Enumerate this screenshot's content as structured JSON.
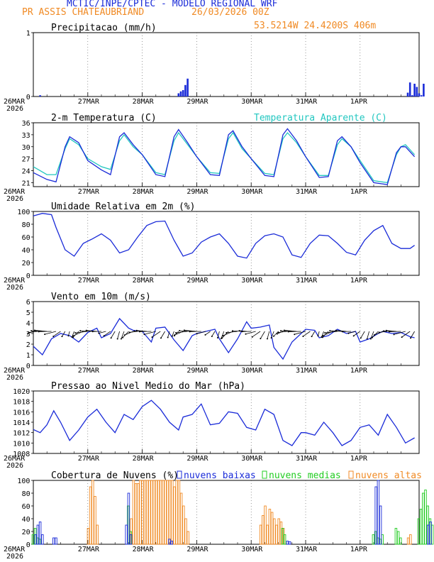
{
  "header": {
    "title": "MCTIC/INPE/CPTEC - MODELO REGIONAL WRF",
    "location": "PR ASSIS CHATEAUBRIAND",
    "datetime": "26/03/2026 00Z",
    "coords": "53.5214W 24.4200S 406m"
  },
  "colors": {
    "blue": "#1a2bd8",
    "orange": "#f08a24",
    "teal": "#22c7c0",
    "green": "#22cc22"
  },
  "chart_data": [
    {
      "type": "bar",
      "title": "Precipitacao (mm/h)",
      "x_tick_labels": [
        "26MAR",
        "27MAR",
        "28MAR",
        "29MAR",
        "30MAR",
        "31MAR",
        "1APR"
      ],
      "x_year": "2026",
      "ylim": [
        0,
        1
      ],
      "y_ticks": [
        0,
        1
      ],
      "hours": [
        3,
        64,
        65,
        66,
        67,
        68,
        165,
        166,
        167,
        168,
        169,
        170,
        171,
        172
      ],
      "values": [
        0.02,
        0.05,
        0.08,
        0.1,
        0.18,
        0.28,
        0.06,
        0.22,
        0.02,
        0.2,
        0.15,
        0.05,
        0.02,
        0.2
      ]
    },
    {
      "type": "line",
      "title": "2-m Temperatura (C)",
      "legend2": "Temperatura Aparente (C)",
      "ylim": [
        20,
        36
      ],
      "y_ticks": [
        21,
        24,
        27,
        30,
        33,
        36
      ],
      "hours": [
        0,
        6,
        10,
        14,
        16,
        20,
        24,
        30,
        34,
        38,
        40,
        44,
        48,
        54,
        58,
        62,
        64,
        68,
        72,
        78,
        82,
        86,
        88,
        92,
        96,
        102,
        106,
        110,
        112,
        116,
        120,
        126,
        130,
        134,
        136,
        140,
        144,
        150,
        156,
        160,
        162,
        164,
        168
      ],
      "temp": [
        23.5,
        21.8,
        21.2,
        30,
        32.5,
        31,
        26.5,
        24.2,
        23,
        32.5,
        33.5,
        30.5,
        28,
        23,
        22.5,
        32.5,
        34.3,
        31,
        27.5,
        23,
        22.8,
        33,
        34,
        30,
        27,
        22.8,
        22.5,
        33,
        34.5,
        31.5,
        27.5,
        22.3,
        22.5,
        31.5,
        32.5,
        30,
        26,
        21,
        20.5,
        28.5,
        30,
        30,
        27.5
      ],
      "apparent": [
        25,
        23,
        23,
        29.5,
        32,
        30.5,
        27,
        25,
        24.3,
        31.5,
        33,
        30,
        28,
        23.5,
        23,
        31.5,
        33.5,
        30.5,
        27.5,
        23.5,
        23.3,
        32,
        33.5,
        29.5,
        27,
        23.3,
        23,
        32,
        33.5,
        31,
        27.5,
        22.8,
        22.8,
        30.5,
        32,
        30,
        26.5,
        21.5,
        21,
        28,
        30,
        30.5,
        28
      ]
    },
    {
      "type": "line",
      "title": "Umidade Relativa em 2m (%)",
      "ylim": [
        0,
        100
      ],
      "y_ticks": [
        0,
        20,
        40,
        60,
        80,
        100
      ],
      "hours": [
        0,
        4,
        8,
        10,
        14,
        18,
        22,
        26,
        30,
        34,
        38,
        42,
        46,
        50,
        54,
        58,
        62,
        66,
        70,
        74,
        78,
        82,
        86,
        90,
        94,
        98,
        102,
        106,
        110,
        114,
        118,
        122,
        126,
        130,
        134,
        138,
        142,
        146,
        150,
        154,
        158,
        162,
        166,
        168
      ],
      "values": [
        93,
        97,
        95,
        75,
        40,
        30,
        50,
        57,
        65,
        55,
        35,
        40,
        60,
        78,
        84,
        85,
        55,
        30,
        35,
        52,
        60,
        65,
        50,
        30,
        27,
        50,
        62,
        65,
        60,
        32,
        28,
        50,
        63,
        62,
        50,
        36,
        32,
        55,
        70,
        78,
        50,
        42,
        42,
        47
      ]
    },
    {
      "type": "line",
      "title": "Vento em 10m (m/s)",
      "ylim": [
        0,
        6
      ],
      "y_ticks": [
        0,
        1,
        2,
        3,
        4,
        5,
        6
      ],
      "hours": [
        0,
        4,
        8,
        12,
        16,
        20,
        24,
        28,
        30,
        34,
        38,
        42,
        44,
        48,
        52,
        54,
        58,
        62,
        66,
        70,
        72,
        76,
        80,
        82,
        86,
        90,
        94,
        96,
        100,
        104,
        106,
        110,
        114,
        118,
        120,
        124,
        126,
        130,
        134,
        138,
        142,
        144,
        148,
        152,
        154,
        158,
        162,
        166,
        168
      ],
      "values": [
        1.8,
        1,
        2.5,
        3,
        2.8,
        2.2,
        3.1,
        3.5,
        2.6,
        3,
        4.4,
        3.5,
        3.3,
        3.2,
        2.2,
        3.5,
        3.6,
        2.4,
        1.4,
        2.8,
        3,
        3.2,
        3.4,
        2.5,
        1.2,
        2.5,
        4.1,
        3.5,
        3.6,
        3.8,
        1.7,
        0.6,
        2.2,
        3,
        3.4,
        3.3,
        2.6,
        2.8,
        3.4,
        3,
        3.2,
        2.2,
        2.5,
        3,
        3.2,
        3,
        3.1,
        2.7,
        2.6
      ]
    },
    {
      "type": "line",
      "title": "Pressao ao Nivel Medio do Mar (hPa)",
      "ylim": [
        1008,
        1020
      ],
      "y_ticks": [
        1008,
        1010,
        1012,
        1014,
        1016,
        1018,
        1020
      ],
      "hours": [
        0,
        3,
        6,
        9,
        12,
        16,
        20,
        24,
        28,
        32,
        36,
        40,
        44,
        48,
        52,
        56,
        60,
        64,
        66,
        70,
        74,
        78,
        82,
        86,
        90,
        94,
        98,
        102,
        106,
        110,
        114,
        118,
        120,
        124,
        128,
        132,
        136,
        140,
        144,
        148,
        152,
        156,
        160,
        164,
        168
      ],
      "values": [
        1012.6,
        1012,
        1013.5,
        1016.2,
        1014,
        1010.5,
        1012.5,
        1015,
        1016.5,
        1014,
        1012,
        1015.5,
        1014.5,
        1017,
        1018.2,
        1016.5,
        1014,
        1012.5,
        1015,
        1015.5,
        1017.5,
        1013.5,
        1013.8,
        1016,
        1015.7,
        1013,
        1012.5,
        1016.5,
        1015.5,
        1010.5,
        1009.5,
        1012,
        1012,
        1011.5,
        1014,
        1012,
        1009.5,
        1010.5,
        1013,
        1013.5,
        1011.5,
        1015.5,
        1013,
        1010,
        1011
      ]
    },
    {
      "type": "bar",
      "title": "Cobertura de Nuvens (%)",
      "legend": [
        "nuvens baixas",
        "nuvens medias",
        "nuvens altas"
      ],
      "ylim": [
        0,
        100
      ],
      "y_ticks": [
        0,
        20,
        40,
        60,
        80,
        100
      ],
      "low_hours": [
        1,
        2,
        3,
        4,
        9,
        10,
        41,
        42,
        43,
        60,
        61,
        112,
        113,
        151,
        152,
        153,
        174,
        175
      ],
      "low_values": [
        15,
        30,
        35,
        15,
        10,
        10,
        30,
        80,
        15,
        8,
        5,
        5,
        4,
        90,
        100,
        60,
        30,
        35
      ],
      "mid_hours": [
        0,
        1,
        2,
        3,
        42,
        43,
        110,
        111,
        150,
        151,
        152,
        153,
        154,
        160,
        161,
        162,
        170,
        171,
        172,
        173,
        174,
        175,
        176
      ],
      "mid_values": [
        15,
        25,
        10,
        8,
        60,
        20,
        25,
        15,
        15,
        20,
        10,
        8,
        15,
        25,
        20,
        10,
        40,
        55,
        80,
        85,
        60,
        40,
        30
      ],
      "high_hours": [
        24,
        25,
        26,
        27,
        28,
        43,
        44,
        45,
        46,
        47,
        48,
        49,
        50,
        51,
        52,
        53,
        54,
        55,
        56,
        57,
        58,
        59,
        60,
        61,
        62,
        63,
        64,
        65,
        66,
        67,
        68,
        100,
        101,
        102,
        103,
        104,
        105,
        106,
        107,
        108,
        109,
        110,
        165,
        166
      ],
      "high_values": [
        25,
        90,
        100,
        75,
        30,
        40,
        100,
        95,
        95,
        100,
        100,
        100,
        100,
        100,
        100,
        100,
        100,
        100,
        100,
        100,
        100,
        100,
        100,
        100,
        90,
        100,
        100,
        80,
        60,
        40,
        20,
        30,
        45,
        60,
        30,
        55,
        50,
        40,
        30,
        40,
        35,
        25,
        10,
        15
      ]
    }
  ]
}
